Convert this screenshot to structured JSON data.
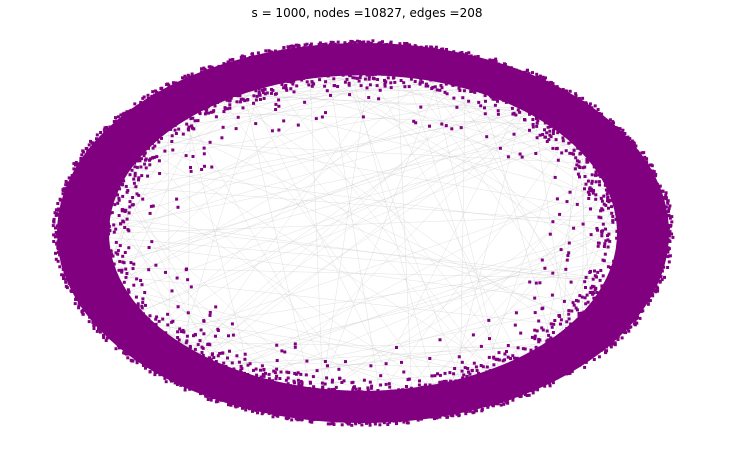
{
  "figure": {
    "title": "s = 1000, nodes =10827, edges =208"
  },
  "graph": {
    "nodes": 10827,
    "edges": 208,
    "layout": "ring",
    "node_color": "#800080",
    "edge_color": "#c8c8c8",
    "background": "#ffffff"
  }
}
